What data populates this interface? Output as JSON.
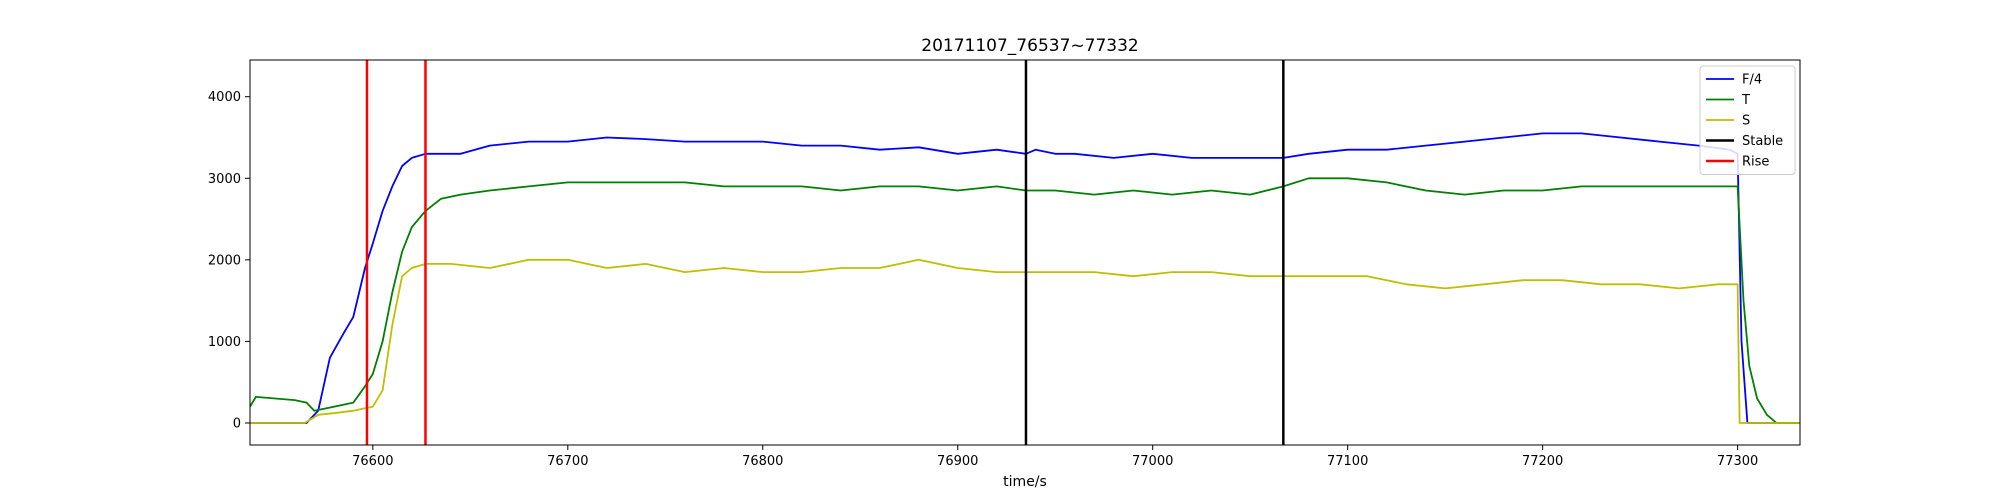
{
  "chart_data": {
    "type": "line",
    "title": "20171107_76537~77332",
    "xlabel": "time/s",
    "ylabel": "",
    "xlim": [
      76537,
      77332
    ],
    "ylim": [
      -270,
      4450
    ],
    "x_ticks": [
      76600,
      76700,
      76800,
      76900,
      77000,
      77100,
      77200,
      77300
    ],
    "y_ticks": [
      0,
      1000,
      2000,
      3000,
      4000
    ],
    "grid": false,
    "legend_position": "top-right",
    "series": [
      {
        "name": "F/4",
        "color": "#0000ff",
        "x": [
          76537,
          76550,
          76562,
          76566,
          76572,
          76578,
          76585,
          76590,
          76596,
          76600,
          76605,
          76610,
          76615,
          76620,
          76627,
          76635,
          76645,
          76660,
          76680,
          76700,
          76720,
          76740,
          76760,
          76780,
          76800,
          76820,
          76840,
          76860,
          76880,
          76900,
          76920,
          76935,
          76940,
          76950,
          76960,
          76980,
          77000,
          77020,
          77040,
          77060,
          77067,
          77080,
          77100,
          77120,
          77140,
          77160,
          77180,
          77200,
          77220,
          77240,
          77260,
          77280,
          77296,
          77300,
          77302,
          77305,
          77332
        ],
        "y": [
          0,
          0,
          0,
          0,
          150,
          800,
          1100,
          1300,
          1900,
          2200,
          2600,
          2900,
          3150,
          3250,
          3300,
          3300,
          3300,
          3400,
          3450,
          3450,
          3500,
          3480,
          3450,
          3450,
          3450,
          3400,
          3400,
          3350,
          3380,
          3300,
          3350,
          3300,
          3350,
          3300,
          3300,
          3250,
          3300,
          3250,
          3250,
          3250,
          3250,
          3300,
          3350,
          3350,
          3400,
          3450,
          3500,
          3550,
          3550,
          3500,
          3450,
          3400,
          3350,
          3300,
          1000,
          0,
          0
        ]
      },
      {
        "name": "T",
        "color": "#008000",
        "x": [
          76537,
          76540,
          76550,
          76560,
          76566,
          76570,
          76580,
          76590,
          76596,
          76600,
          76605,
          76610,
          76615,
          76620,
          76627,
          76635,
          76645,
          76660,
          76680,
          76700,
          76720,
          76740,
          76760,
          76780,
          76800,
          76820,
          76840,
          76860,
          76880,
          76900,
          76920,
          76935,
          76950,
          76970,
          76990,
          77010,
          77030,
          77050,
          77067,
          77080,
          77100,
          77120,
          77140,
          77160,
          77180,
          77200,
          77220,
          77240,
          77260,
          77280,
          77296,
          77300,
          77303,
          77306,
          77310,
          77315,
          77320,
          77332
        ],
        "y": [
          200,
          320,
          300,
          280,
          250,
          150,
          200,
          250,
          450,
          600,
          1000,
          1600,
          2100,
          2400,
          2600,
          2750,
          2800,
          2850,
          2900,
          2950,
          2950,
          2950,
          2950,
          2900,
          2900,
          2900,
          2850,
          2900,
          2900,
          2850,
          2900,
          2850,
          2850,
          2800,
          2850,
          2800,
          2850,
          2800,
          2900,
          3000,
          3000,
          2950,
          2850,
          2800,
          2850,
          2850,
          2900,
          2900,
          2900,
          2900,
          2900,
          2900,
          1500,
          700,
          300,
          100,
          0,
          0
        ]
      },
      {
        "name": "S",
        "color": "#bfbf00",
        "x": [
          76537,
          76550,
          76565,
          76572,
          76580,
          76590,
          76596,
          76600,
          76605,
          76610,
          76615,
          76620,
          76627,
          76640,
          76660,
          76680,
          76700,
          76720,
          76740,
          76760,
          76780,
          76800,
          76820,
          76840,
          76860,
          76880,
          76900,
          76920,
          76935,
          76950,
          76970,
          76990,
          77010,
          77030,
          77050,
          77067,
          77090,
          77110,
          77130,
          77150,
          77170,
          77190,
          77210,
          77230,
          77250,
          77270,
          77290,
          77300,
          77301,
          77332
        ],
        "y": [
          0,
          0,
          0,
          100,
          120,
          150,
          180,
          200,
          400,
          1200,
          1800,
          1900,
          1950,
          1950,
          1900,
          2000,
          2000,
          1900,
          1950,
          1850,
          1900,
          1850,
          1850,
          1900,
          1900,
          2000,
          1900,
          1850,
          1850,
          1850,
          1850,
          1800,
          1850,
          1850,
          1800,
          1800,
          1800,
          1800,
          1700,
          1650,
          1700,
          1750,
          1750,
          1700,
          1700,
          1650,
          1700,
          1700,
          0,
          0
        ]
      }
    ],
    "vlines": [
      {
        "name": "Rise",
        "color": "#ff0000",
        "x": [
          76597,
          76627
        ]
      },
      {
        "name": "Stable",
        "color": "#000000",
        "x": [
          76935,
          77067
        ]
      }
    ],
    "legend": [
      {
        "label": "F/4",
        "color": "#0000ff"
      },
      {
        "label": "T",
        "color": "#008000"
      },
      {
        "label": "S",
        "color": "#bfbf00"
      },
      {
        "label": "Stable",
        "color": "#000000"
      },
      {
        "label": "Rise",
        "color": "#ff0000"
      }
    ]
  }
}
